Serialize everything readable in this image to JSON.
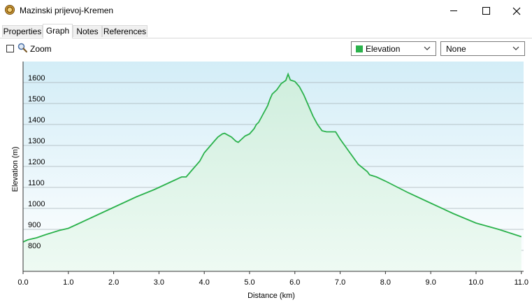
{
  "window": {
    "title": "Mazinski prijevoj-Kremen",
    "icon": "app-globe-icon",
    "controls": [
      "minimize-icon",
      "maximize-icon",
      "close-icon"
    ]
  },
  "tabs": [
    {
      "label": "Properties",
      "active": false
    },
    {
      "label": "Graph",
      "active": true
    },
    {
      "label": "Notes",
      "active": false
    },
    {
      "label": "References",
      "active": false
    }
  ],
  "toolbar": {
    "zoom_label": "Zoom",
    "zoom_checked": false,
    "primary_select": {
      "value": "Elevation",
      "color": "#2bb24c"
    },
    "secondary_select": {
      "value": "None"
    }
  },
  "chart_data": {
    "type": "area",
    "xlabel": "Distance  (km)",
    "ylabel": "Elevation (m)",
    "xlim": [
      0,
      11.05
    ],
    "ylim": [
      700,
      1700
    ],
    "xticks": [
      0.0,
      1.0,
      2.0,
      3.0,
      4.0,
      5.0,
      6.0,
      7.0,
      8.0,
      9.0,
      10.0,
      11.0
    ],
    "xtick_labels": [
      "0.0",
      "1.0",
      "2.0",
      "3.0",
      "4.0",
      "5.0",
      "6.0",
      "7.0",
      "8.0",
      "9.0",
      "10.0",
      "11.0"
    ],
    "yticks": [
      800,
      900,
      1000,
      1100,
      1200,
      1300,
      1400,
      1500,
      1600
    ],
    "ytick_labels": [
      "800",
      "900",
      "1000",
      "1100",
      "1200",
      "1300",
      "1400",
      "1500",
      "1600"
    ],
    "grid": true,
    "line_color": "#2bb24c",
    "series": [
      {
        "x": [
          0.0,
          0.1,
          0.3,
          0.5,
          0.8,
          1.0,
          1.2,
          1.5,
          2.0,
          2.5,
          2.9,
          3.0,
          3.3,
          3.5,
          3.6,
          3.7,
          3.9,
          4.0,
          4.1,
          4.2,
          4.3,
          4.4,
          4.45,
          4.5,
          4.6,
          4.7,
          4.75,
          4.8,
          4.9,
          5.0,
          5.1,
          5.15,
          5.2,
          5.25,
          5.3,
          5.35,
          5.4,
          5.45,
          5.5,
          5.6,
          5.7,
          5.8,
          5.85,
          5.9,
          6.0,
          6.1,
          6.2,
          6.3,
          6.4,
          6.5,
          6.6,
          6.7,
          6.9,
          7.0,
          7.2,
          7.4,
          7.6,
          7.65,
          7.8,
          8.0,
          8.5,
          9.0,
          9.5,
          10.0,
          10.5,
          11.0
        ],
        "y": [
          840,
          850,
          860,
          875,
          895,
          905,
          925,
          955,
          1005,
          1055,
          1090,
          1100,
          1130,
          1150,
          1150,
          1175,
          1225,
          1265,
          1290,
          1315,
          1340,
          1355,
          1358,
          1352,
          1340,
          1320,
          1315,
          1325,
          1345,
          1355,
          1380,
          1400,
          1410,
          1430,
          1450,
          1470,
          1490,
          1520,
          1545,
          1565,
          1595,
          1610,
          1640,
          1612,
          1605,
          1580,
          1540,
          1490,
          1440,
          1400,
          1370,
          1365,
          1365,
          1330,
          1270,
          1210,
          1175,
          1160,
          1150,
          1130,
          1075,
          1025,
          975,
          930,
          900,
          865
        ]
      }
    ]
  }
}
